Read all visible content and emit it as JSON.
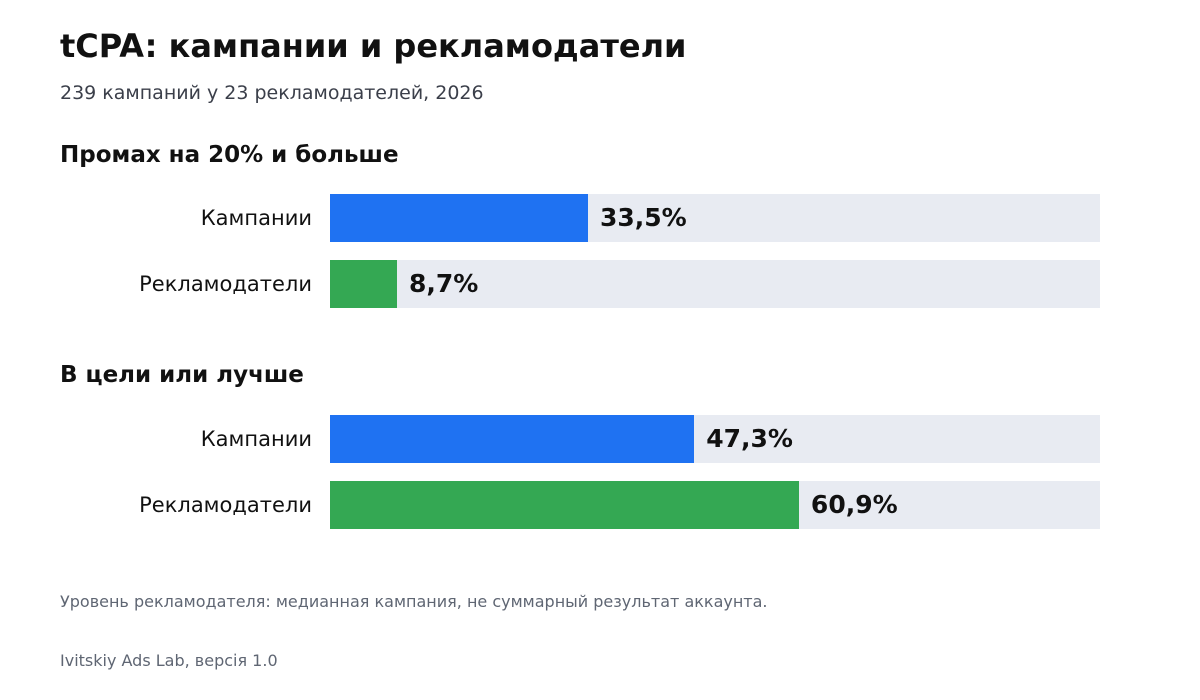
{
  "chart_data": {
    "type": "bar",
    "orientation": "horizontal",
    "title": "tCPA: кампании и рекламодатели",
    "subtitle": "239 кампаний у 23 рекламодателей, 2026",
    "xlim": [
      0,
      100
    ],
    "grid": false,
    "panels": [
      {
        "title": "Промах на 20% и больше",
        "bars": [
          {
            "label": "Кампании",
            "value": 33.5,
            "display": "33,5%",
            "color": "#1f72f2"
          },
          {
            "label": "Рекламодатели",
            "value": 8.7,
            "display": "8,7%",
            "color": "#34a853"
          }
        ]
      },
      {
        "title": "В цели или лучше",
        "bars": [
          {
            "label": "Кампании",
            "value": 47.3,
            "display": "47,3%",
            "color": "#1f72f2"
          },
          {
            "label": "Рекламодатели",
            "value": 60.9,
            "display": "60,9%",
            "color": "#34a853"
          }
        ]
      }
    ],
    "note": "Уровень рекламодателя: медианная кампания, не суммарный результат аккаунта.",
    "source": "Ivitskiy Ads Lab, версія 1.0"
  }
}
